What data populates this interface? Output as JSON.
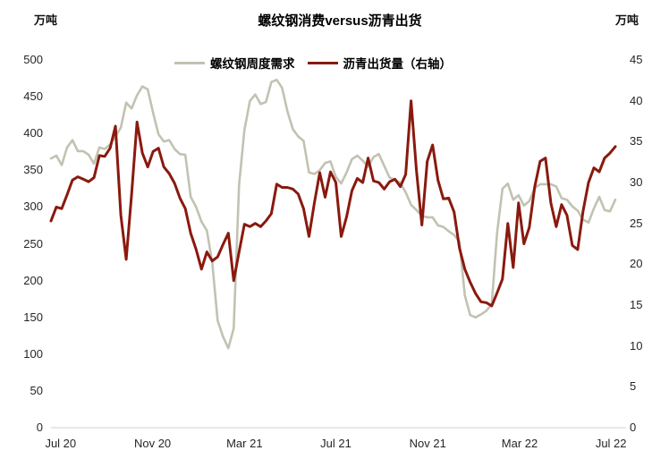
{
  "title": "螺纹钢消费versus沥青出货",
  "left_axis_unit": "万吨",
  "right_axis_unit": "万吨",
  "legend": {
    "rebar_label": "螺纹钢周度需求",
    "asphalt_label": "沥青出货量（右轴）"
  },
  "colors": {
    "rebar": "#C2C2B2",
    "asphalt": "#8A190F",
    "axis_line": "#D9D9D9",
    "text": "#262626"
  },
  "chart_data": {
    "type": "line",
    "title": "螺纹钢消费versus沥青出货",
    "grid": false,
    "legend_position": "top",
    "left_axis": {
      "unit": "万吨",
      "min": 0,
      "max": 500,
      "ticks": [
        500,
        450,
        400,
        350,
        300,
        250,
        200,
        150,
        100,
        50,
        0
      ]
    },
    "right_axis": {
      "unit": "万吨",
      "min": 0,
      "max": 45,
      "ticks": [
        45,
        40,
        35,
        30,
        25,
        20,
        15,
        10,
        5,
        0
      ]
    },
    "x_axis": {
      "tick_labels": [
        "Jul 20",
        "Nov 20",
        "Mar 21",
        "Jul 21",
        "Nov 21",
        "Mar 22",
        "Jul 22"
      ],
      "tick_indices": [
        1.8,
        18.9,
        36.0,
        53.0,
        70.1,
        87.2,
        104.2
      ],
      "n_points": 106
    },
    "series": [
      {
        "name": "螺纹钢周度需求",
        "axis": "left",
        "color": "#C2C2B2",
        "width": 2.6,
        "values": [
          366,
          370,
          357,
          381,
          391,
          376,
          376,
          371,
          359,
          381,
          379,
          385,
          396,
          408,
          442,
          434,
          452,
          464,
          460,
          428,
          399,
          389,
          391,
          379,
          372,
          371,
          314,
          300,
          280,
          268,
          225,
          146,
          124,
          108,
          135,
          330,
          405,
          444,
          453,
          440,
          443,
          470,
          473,
          462,
          430,
          406,
          396,
          390,
          347,
          345,
          350,
          360,
          362,
          341,
          332,
          347,
          365,
          370,
          363,
          355,
          368,
          372,
          356,
          340,
          337,
          333,
          320,
          303,
          296,
          288,
          286,
          286,
          275,
          273,
          267,
          262,
          253,
          180,
          153,
          150,
          154,
          159,
          168,
          265,
          325,
          332,
          310,
          316,
          302,
          308,
          326,
          331,
          331,
          331,
          328,
          312,
          310,
          301,
          295,
          283,
          279,
          298,
          314,
          296,
          294,
          310
        ]
      },
      {
        "name": "沥青出货量（右轴）",
        "axis": "right",
        "color": "#8A190F",
        "width": 3,
        "values": [
          25.3,
          27.0,
          26.8,
          28.5,
          30.3,
          30.7,
          30.4,
          30.1,
          30.6,
          33.3,
          33.2,
          34.2,
          36.9,
          26.0,
          20.6,
          28.5,
          37.4,
          33.6,
          31.9,
          33.8,
          34.2,
          31.9,
          31.1,
          29.9,
          28.1,
          26.8,
          23.8,
          21.8,
          19.4,
          21.5,
          20.4,
          20.9,
          22.4,
          23.8,
          18.0,
          21.5,
          24.9,
          24.6,
          25.0,
          24.6,
          25.3,
          26.2,
          29.8,
          29.4,
          29.4,
          29.2,
          28.6,
          26.8,
          23.4,
          27.5,
          31.2,
          28.2,
          31.3,
          30.0,
          23.4,
          25.8,
          29.0,
          30.5,
          30.0,
          33.0,
          30.2,
          30.0,
          29.2,
          30.1,
          30.4,
          29.5,
          31.0,
          40.0,
          31.5,
          24.8,
          32.6,
          34.6,
          30.3,
          28.0,
          28.1,
          26.4,
          22.0,
          19.4,
          17.8,
          16.4,
          15.4,
          15.3,
          14.9,
          16.5,
          18.2,
          25.0,
          19.6,
          27.5,
          22.5,
          24.5,
          29.5,
          32.6,
          33.0,
          27.5,
          24.6,
          27.3,
          26.0,
          22.3,
          21.8,
          26.5,
          30.0,
          31.8,
          31.3,
          33.0,
          33.6,
          34.4
        ]
      }
    ]
  }
}
